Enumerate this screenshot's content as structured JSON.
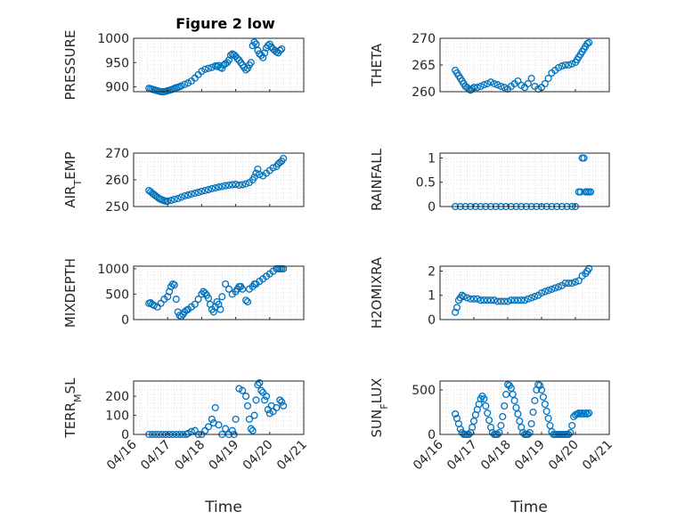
{
  "figure": {
    "title": "Figure 2 low",
    "xlabel": "Time",
    "marker_color": "#0072BD",
    "x_tick_labels": [
      "04/16",
      "04/17",
      "04/18",
      "04/19",
      "04/20",
      "04/21"
    ]
  },
  "chart_data": [
    {
      "id": "pressure",
      "type": "scatter",
      "ylabel": "PRESSURE",
      "title": "Figure 2 low",
      "xlim": [
        0,
        5
      ],
      "ylim": [
        890,
        1000
      ],
      "yticks": [
        900,
        950,
        1000
      ],
      "x": [
        0.45,
        0.5,
        0.55,
        0.6,
        0.65,
        0.7,
        0.75,
        0.8,
        0.85,
        0.9,
        0.95,
        1.0,
        1.05,
        1.1,
        1.15,
        1.2,
        1.25,
        1.3,
        1.35,
        1.4,
        1.5,
        1.6,
        1.7,
        1.8,
        1.9,
        2.0,
        2.1,
        2.2,
        2.3,
        2.4,
        2.45,
        2.5,
        2.55,
        2.6,
        2.65,
        2.7,
        2.75,
        2.8,
        2.85,
        2.9,
        2.95,
        3.0,
        3.05,
        3.1,
        3.15,
        3.2,
        3.25,
        3.3,
        3.35,
        3.4,
        3.45,
        3.5,
        3.55,
        3.6,
        3.65,
        3.7,
        3.75,
        3.8,
        3.85,
        3.9,
        3.95,
        4.0,
        4.05,
        4.1,
        4.15,
        4.2,
        4.25,
        4.3,
        4.35
      ],
      "y": [
        897,
        896,
        895,
        894,
        893,
        892,
        891,
        890,
        890,
        890,
        891,
        892,
        893,
        894,
        895,
        897,
        898,
        899,
        900,
        902,
        905,
        908,
        912,
        918,
        925,
        932,
        936,
        938,
        940,
        943,
        942,
        944,
        940,
        938,
        945,
        948,
        950,
        955,
        965,
        968,
        966,
        963,
        958,
        955,
        950,
        945,
        940,
        935,
        938,
        945,
        950,
        985,
        992,
        988,
        975,
        968,
        965,
        960,
        970,
        980,
        985,
        988,
        982,
        978,
        975,
        972,
        970,
        975,
        978
      ]
    },
    {
      "id": "theta",
      "type": "scatter",
      "ylabel": "THETA",
      "xlim": [
        0,
        5
      ],
      "ylim": [
        260,
        270
      ],
      "yticks": [
        260,
        265,
        270
      ],
      "x": [
        0.45,
        0.5,
        0.55,
        0.6,
        0.65,
        0.7,
        0.75,
        0.8,
        0.85,
        0.9,
        0.95,
        1.0,
        1.1,
        1.2,
        1.3,
        1.4,
        1.5,
        1.6,
        1.7,
        1.8,
        1.9,
        2.0,
        2.1,
        2.2,
        2.3,
        2.4,
        2.5,
        2.6,
        2.7,
        2.8,
        2.9,
        3.0,
        3.1,
        3.2,
        3.3,
        3.4,
        3.5,
        3.6,
        3.7,
        3.8,
        3.9,
        4.0,
        4.05,
        4.1,
        4.15,
        4.2,
        4.25,
        4.3,
        4.35,
        4.4
      ],
      "y": [
        264,
        263.5,
        263,
        262.5,
        262,
        261.5,
        261,
        260.8,
        260.5,
        260.3,
        260.5,
        260.8,
        260.8,
        261,
        261.3,
        261.5,
        261.8,
        261.5,
        261.3,
        261,
        260.8,
        260.5,
        261,
        261.5,
        262,
        261.2,
        260.8,
        261.5,
        262.5,
        261,
        260.5,
        260.8,
        261.5,
        262.5,
        263.5,
        264,
        264.5,
        264.8,
        265,
        265,
        265.2,
        265.5,
        266,
        266.5,
        267,
        267.5,
        268,
        268.5,
        269,
        269.2
      ]
    },
    {
      "id": "air_temp",
      "type": "scatter",
      "ylabel": "AIR_TEMP",
      "xlim": [
        0,
        5
      ],
      "ylim": [
        250,
        270
      ],
      "yticks": [
        250,
        260,
        270
      ],
      "x": [
        0.45,
        0.5,
        0.55,
        0.6,
        0.65,
        0.7,
        0.75,
        0.8,
        0.85,
        0.9,
        0.95,
        1.0,
        1.1,
        1.2,
        1.3,
        1.4,
        1.5,
        1.6,
        1.7,
        1.8,
        1.9,
        2.0,
        2.1,
        2.2,
        2.3,
        2.4,
        2.5,
        2.6,
        2.7,
        2.8,
        2.9,
        3.0,
        3.1,
        3.2,
        3.3,
        3.4,
        3.5,
        3.55,
        3.6,
        3.65,
        3.7,
        3.8,
        3.9,
        4.0,
        4.1,
        4.2,
        4.25,
        4.3,
        4.35,
        4.4
      ],
      "y": [
        256,
        255.5,
        255,
        254.5,
        254,
        253.5,
        253,
        252.7,
        252.4,
        252.2,
        252,
        252,
        252.3,
        252.7,
        253,
        253.5,
        254,
        254.3,
        254.7,
        255,
        255.3,
        255.7,
        256,
        256.3,
        256.7,
        257,
        257.3,
        257.5,
        257.8,
        258,
        258.2,
        258.3,
        258,
        258.2,
        258.5,
        259,
        260,
        261,
        262.5,
        264,
        262,
        261.5,
        262.5,
        263.5,
        264.5,
        265,
        266,
        266.5,
        267,
        268
      ]
    },
    {
      "id": "rainfall",
      "type": "scatter",
      "ylabel": "RAINFALL",
      "xlim": [
        0,
        5
      ],
      "ylim": [
        0,
        1.1
      ],
      "yticks": [
        0,
        0.5,
        1
      ],
      "x": [
        0.45,
        0.6,
        0.75,
        0.9,
        1.05,
        1.2,
        1.35,
        1.5,
        1.65,
        1.8,
        1.95,
        2.1,
        2.25,
        2.4,
        2.55,
        2.7,
        2.85,
        3.0,
        3.15,
        3.3,
        3.45,
        3.6,
        3.75,
        3.9,
        4.0,
        4.1,
        4.15,
        4.2,
        4.25,
        4.3,
        4.35,
        4.4,
        4.45
      ],
      "y": [
        0,
        0,
        0,
        0,
        0,
        0,
        0,
        0,
        0,
        0,
        0,
        0,
        0,
        0,
        0,
        0,
        0,
        0,
        0,
        0,
        0,
        0,
        0,
        0,
        0,
        0.3,
        0.3,
        1.0,
        1.0,
        0.3,
        0.3,
        0.3,
        0.3
      ]
    },
    {
      "id": "mixdepth",
      "type": "scatter",
      "ylabel": "MIXDEPTH",
      "xlim": [
        0,
        5
      ],
      "ylim": [
        0,
        1050
      ],
      "yticks": [
        0,
        500,
        1000
      ],
      "x": [
        0.45,
        0.5,
        0.55,
        0.6,
        0.7,
        0.8,
        0.9,
        1.0,
        1.05,
        1.1,
        1.15,
        1.2,
        1.25,
        1.3,
        1.35,
        1.4,
        1.45,
        1.5,
        1.55,
        1.6,
        1.7,
        1.8,
        1.9,
        2.0,
        2.05,
        2.1,
        2.15,
        2.2,
        2.25,
        2.3,
        2.35,
        2.4,
        2.45,
        2.5,
        2.55,
        2.6,
        2.7,
        2.8,
        2.9,
        3.0,
        3.05,
        3.1,
        3.15,
        3.2,
        3.3,
        3.35,
        3.4,
        3.5,
        3.55,
        3.6,
        3.7,
        3.8,
        3.9,
        4.0,
        4.1,
        4.2,
        4.25,
        4.3,
        4.35,
        4.4
      ],
      "y": [
        320,
        330,
        300,
        280,
        250,
        320,
        400,
        450,
        550,
        650,
        700,
        680,
        400,
        150,
        80,
        60,
        100,
        150,
        180,
        200,
        250,
        300,
        400,
        500,
        550,
        520,
        480,
        420,
        300,
        200,
        150,
        250,
        350,
        300,
        200,
        450,
        700,
        600,
        500,
        550,
        600,
        650,
        650,
        600,
        380,
        350,
        600,
        650,
        700,
        700,
        750,
        800,
        850,
        900,
        950,
        1000,
        1000,
        1000,
        1000,
        1000
      ]
    },
    {
      "id": "h2omixra",
      "type": "scatter",
      "ylabel": "H2OMIXRA",
      "xlim": [
        0,
        5
      ],
      "ylim": [
        0,
        2.2
      ],
      "yticks": [
        0,
        1,
        2
      ],
      "x": [
        0.45,
        0.5,
        0.55,
        0.6,
        0.65,
        0.7,
        0.8,
        0.9,
        1.0,
        1.1,
        1.2,
        1.3,
        1.4,
        1.5,
        1.6,
        1.7,
        1.8,
        1.9,
        2.0,
        2.1,
        2.2,
        2.3,
        2.4,
        2.5,
        2.6,
        2.7,
        2.8,
        2.9,
        3.0,
        3.1,
        3.2,
        3.3,
        3.4,
        3.5,
        3.6,
        3.7,
        3.8,
        3.9,
        4.0,
        4.1,
        4.2,
        4.3,
        4.35,
        4.4
      ],
      "y": [
        0.3,
        0.5,
        0.8,
        0.9,
        1.0,
        0.95,
        0.9,
        0.85,
        0.85,
        0.85,
        0.8,
        0.8,
        0.8,
        0.8,
        0.8,
        0.75,
        0.75,
        0.75,
        0.75,
        0.8,
        0.8,
        0.8,
        0.8,
        0.8,
        0.85,
        0.9,
        0.95,
        1.0,
        1.1,
        1.15,
        1.2,
        1.25,
        1.3,
        1.35,
        1.4,
        1.5,
        1.5,
        1.5,
        1.55,
        1.6,
        1.8,
        1.9,
        2.0,
        2.1
      ]
    },
    {
      "id": "terr_msl",
      "type": "scatter",
      "ylabel": "TERR_MSL",
      "xlim": [
        0,
        5
      ],
      "ylim": [
        0,
        280
      ],
      "yticks": [
        0,
        100,
        200
      ],
      "x": [
        0.45,
        0.55,
        0.65,
        0.75,
        0.85,
        0.95,
        1.05,
        1.15,
        1.25,
        1.35,
        1.45,
        1.55,
        1.6,
        1.7,
        1.8,
        1.9,
        2.0,
        2.1,
        2.2,
        2.3,
        2.35,
        2.4,
        2.5,
        2.6,
        2.7,
        2.8,
        2.9,
        2.95,
        3.0,
        3.1,
        3.2,
        3.3,
        3.35,
        3.4,
        3.45,
        3.5,
        3.55,
        3.6,
        3.65,
        3.7,
        3.75,
        3.8,
        3.85,
        3.9,
        3.95,
        4.0,
        4.05,
        4.1,
        4.2,
        4.3,
        4.35,
        4.4
      ],
      "y": [
        0,
        0,
        0,
        0,
        0,
        0,
        0,
        0,
        0,
        0,
        0,
        0,
        5,
        15,
        20,
        0,
        0,
        20,
        40,
        80,
        60,
        140,
        50,
        0,
        30,
        0,
        20,
        0,
        80,
        240,
        230,
        200,
        150,
        80,
        30,
        20,
        100,
        180,
        260,
        270,
        230,
        220,
        180,
        200,
        130,
        110,
        150,
        120,
        140,
        180,
        170,
        150
      ]
    },
    {
      "id": "sun_flux",
      "type": "scatter",
      "ylabel": "SUN_FLUX",
      "xlim": [
        0,
        5
      ],
      "ylim": [
        0,
        600
      ],
      "yticks": [
        0,
        500
      ],
      "x": [
        0.45,
        0.5,
        0.55,
        0.6,
        0.65,
        0.7,
        0.75,
        0.8,
        0.85,
        0.9,
        0.95,
        1.0,
        1.05,
        1.1,
        1.15,
        1.2,
        1.25,
        1.3,
        1.35,
        1.4,
        1.45,
        1.5,
        1.55,
        1.6,
        1.65,
        1.7,
        1.75,
        1.8,
        1.85,
        1.9,
        1.95,
        2.0,
        2.05,
        2.1,
        2.15,
        2.2,
        2.25,
        2.3,
        2.35,
        2.4,
        2.45,
        2.5,
        2.55,
        2.6,
        2.65,
        2.7,
        2.75,
        2.8,
        2.85,
        2.9,
        2.95,
        3.0,
        3.05,
        3.1,
        3.15,
        3.2,
        3.25,
        3.3,
        3.35,
        3.4,
        3.45,
        3.5,
        3.55,
        3.6,
        3.65,
        3.7,
        3.75,
        3.8,
        3.85,
        3.9,
        3.95,
        4.0,
        4.05,
        4.1,
        4.15,
        4.2,
        4.25,
        4.3,
        4.35,
        4.4
      ],
      "y": [
        230,
        180,
        120,
        60,
        20,
        0,
        0,
        0,
        0,
        20,
        80,
        150,
        220,
        280,
        340,
        400,
        430,
        400,
        320,
        240,
        160,
        80,
        20,
        0,
        0,
        0,
        20,
        100,
        200,
        320,
        450,
        560,
        550,
        520,
        450,
        380,
        300,
        230,
        150,
        80,
        20,
        0,
        0,
        0,
        20,
        120,
        250,
        380,
        500,
        560,
        550,
        500,
        420,
        340,
        260,
        180,
        100,
        30,
        0,
        0,
        0,
        0,
        0,
        0,
        0,
        0,
        0,
        0,
        20,
        100,
        200,
        220,
        230,
        240,
        230,
        240,
        230,
        240,
        230,
        240
      ]
    }
  ]
}
